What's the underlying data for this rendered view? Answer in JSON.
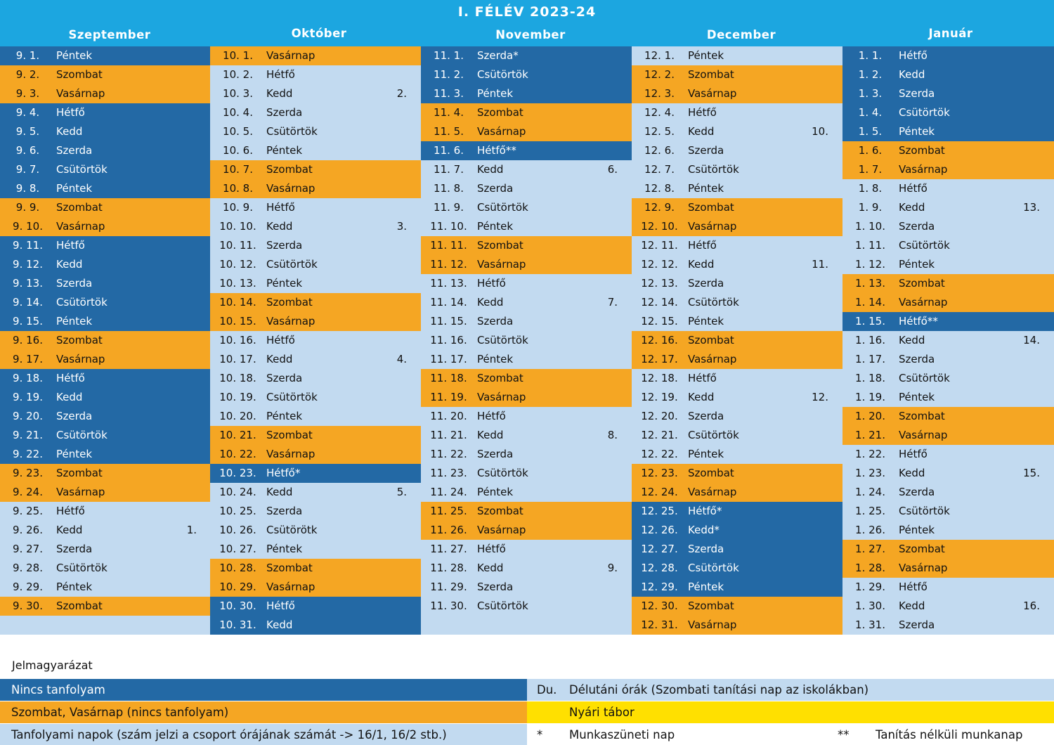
{
  "title": "I. FÉLÉV 2023-24",
  "months": [
    "Szeptember",
    "Október",
    "November",
    "December",
    "Január"
  ],
  "colors": {
    "header": "#1ca6e0",
    "no_course": "#2369a5",
    "weekend": "#f5a623",
    "course_day": "#c2daf0",
    "summer_camp": "#ffe000"
  },
  "columns": [
    {
      "month": "Szeptember",
      "days": [
        {
          "date": "9. 1.",
          "name": "Péntek",
          "type": "dark"
        },
        {
          "date": "9. 2.",
          "name": "Szombat",
          "type": "orange"
        },
        {
          "date": "9. 3.",
          "name": "Vasárnap",
          "type": "orange"
        },
        {
          "date": "9. 4.",
          "name": "Hétfő",
          "type": "dark"
        },
        {
          "date": "9. 5.",
          "name": "Kedd",
          "type": "dark"
        },
        {
          "date": "9. 6.",
          "name": "Szerda",
          "type": "dark"
        },
        {
          "date": "9. 7.",
          "name": "Csütörtök",
          "type": "dark"
        },
        {
          "date": "9. 8.",
          "name": "Péntek",
          "type": "dark"
        },
        {
          "date": "9. 9.",
          "name": "Szombat",
          "type": "orange"
        },
        {
          "date": "9. 10.",
          "name": "Vasárnap",
          "type": "orange"
        },
        {
          "date": "9. 11.",
          "name": "Hétfő",
          "type": "dark"
        },
        {
          "date": "9. 12.",
          "name": "Kedd",
          "type": "dark"
        },
        {
          "date": "9. 13.",
          "name": "Szerda",
          "type": "dark"
        },
        {
          "date": "9. 14.",
          "name": "Csütörtök",
          "type": "dark"
        },
        {
          "date": "9. 15.",
          "name": "Péntek",
          "type": "dark"
        },
        {
          "date": "9. 16.",
          "name": "Szombat",
          "type": "orange"
        },
        {
          "date": "9. 17.",
          "name": "Vasárnap",
          "type": "orange"
        },
        {
          "date": "9. 18.",
          "name": "Hétfő",
          "type": "dark"
        },
        {
          "date": "9. 19.",
          "name": "Kedd",
          "type": "dark"
        },
        {
          "date": "9. 20.",
          "name": "Szerda",
          "type": "dark"
        },
        {
          "date": "9. 21.",
          "name": "Csütörtök",
          "type": "dark"
        },
        {
          "date": "9. 22.",
          "name": "Péntek",
          "type": "dark"
        },
        {
          "date": "9. 23.",
          "name": "Szombat",
          "type": "orange"
        },
        {
          "date": "9. 24.",
          "name": "Vasárnap",
          "type": "orange"
        },
        {
          "date": "9. 25.",
          "name": "Hétfő",
          "type": "light"
        },
        {
          "date": "9. 26.",
          "name": "Kedd",
          "type": "light",
          "group": "1."
        },
        {
          "date": "9. 27.",
          "name": "Szerda",
          "type": "light"
        },
        {
          "date": "9. 28.",
          "name": "Csütörtök",
          "type": "light"
        },
        {
          "date": "9. 29.",
          "name": "Péntek",
          "type": "light"
        },
        {
          "date": "9. 30.",
          "name": "Szombat",
          "type": "orange"
        },
        {
          "date": "",
          "name": "",
          "type": "empty"
        }
      ]
    },
    {
      "month": "Október",
      "days": [
        {
          "date": "10. 1.",
          "name": "Vasárnap",
          "type": "orange"
        },
        {
          "date": "10. 2.",
          "name": "Hétfő",
          "type": "light"
        },
        {
          "date": "10. 3.",
          "name": "Kedd",
          "type": "light",
          "group": "2."
        },
        {
          "date": "10. 4.",
          "name": "Szerda",
          "type": "light"
        },
        {
          "date": "10. 5.",
          "name": "Csütörtök",
          "type": "light"
        },
        {
          "date": "10. 6.",
          "name": "Péntek",
          "type": "light"
        },
        {
          "date": "10. 7.",
          "name": "Szombat",
          "type": "orange"
        },
        {
          "date": "10. 8.",
          "name": "Vasárnap",
          "type": "orange"
        },
        {
          "date": "10. 9.",
          "name": "Hétfő",
          "type": "light"
        },
        {
          "date": "10. 10.",
          "name": "Kedd",
          "type": "light",
          "group": "3."
        },
        {
          "date": "10. 11.",
          "name": "Szerda",
          "type": "light"
        },
        {
          "date": "10. 12.",
          "name": "Csütörtök",
          "type": "light"
        },
        {
          "date": "10. 13.",
          "name": "Péntek",
          "type": "light"
        },
        {
          "date": "10. 14.",
          "name": "Szombat",
          "type": "orange"
        },
        {
          "date": "10. 15.",
          "name": "Vasárnap",
          "type": "orange"
        },
        {
          "date": "10. 16.",
          "name": "Hétfő",
          "type": "light"
        },
        {
          "date": "10. 17.",
          "name": "Kedd",
          "type": "light",
          "group": "4."
        },
        {
          "date": "10. 18.",
          "name": "Szerda",
          "type": "light"
        },
        {
          "date": "10. 19.",
          "name": "Csütörtök",
          "type": "light"
        },
        {
          "date": "10. 20.",
          "name": "Péntek",
          "type": "light"
        },
        {
          "date": "10. 21.",
          "name": "Szombat",
          "type": "orange"
        },
        {
          "date": "10. 22.",
          "name": "Vasárnap",
          "type": "orange"
        },
        {
          "date": "10. 23.",
          "name": "Hétfő*",
          "type": "dark"
        },
        {
          "date": "10. 24.",
          "name": "Kedd",
          "type": "light",
          "group": "5."
        },
        {
          "date": "10. 25.",
          "name": "Szerda",
          "type": "light"
        },
        {
          "date": "10. 26.",
          "name": "Csütörötk",
          "type": "light"
        },
        {
          "date": "10. 27.",
          "name": "Péntek",
          "type": "light"
        },
        {
          "date": "10. 28.",
          "name": "Szombat",
          "type": "orange"
        },
        {
          "date": "10. 29.",
          "name": "Vasárnap",
          "type": "orange"
        },
        {
          "date": "10. 30.",
          "name": "Hétfő",
          "type": "dark"
        },
        {
          "date": "10. 31.",
          "name": "Kedd",
          "type": "dark"
        }
      ]
    },
    {
      "month": "November",
      "days": [
        {
          "date": "11. 1.",
          "name": "Szerda*",
          "type": "dark"
        },
        {
          "date": "11. 2.",
          "name": "Csütörtök",
          "type": "dark"
        },
        {
          "date": "11. 3.",
          "name": "Péntek",
          "type": "dark"
        },
        {
          "date": "11. 4.",
          "name": "Szombat",
          "type": "orange"
        },
        {
          "date": "11. 5.",
          "name": "Vasárnap",
          "type": "orange"
        },
        {
          "date": "11. 6.",
          "name": "Hétfő**",
          "type": "dark"
        },
        {
          "date": "11. 7.",
          "name": "Kedd",
          "type": "light",
          "group": "6."
        },
        {
          "date": "11. 8.",
          "name": "Szerda",
          "type": "light"
        },
        {
          "date": "11. 9.",
          "name": "Csütörtök",
          "type": "light"
        },
        {
          "date": "11. 10.",
          "name": "Péntek",
          "type": "light"
        },
        {
          "date": "11. 11.",
          "name": "Szombat",
          "type": "orange"
        },
        {
          "date": "11. 12.",
          "name": "Vasárnap",
          "type": "orange"
        },
        {
          "date": "11. 13.",
          "name": "Hétfő",
          "type": "light"
        },
        {
          "date": "11. 14.",
          "name": "Kedd",
          "type": "light",
          "group": "7."
        },
        {
          "date": "11. 15.",
          "name": "Szerda",
          "type": "light"
        },
        {
          "date": "11. 16.",
          "name": "Csütörtök",
          "type": "light"
        },
        {
          "date": "11. 17.",
          "name": "Péntek",
          "type": "light"
        },
        {
          "date": "11. 18.",
          "name": "Szombat",
          "type": "orange"
        },
        {
          "date": "11. 19.",
          "name": "Vasárnap",
          "type": "orange"
        },
        {
          "date": "11. 20.",
          "name": "Hétfő",
          "type": "light"
        },
        {
          "date": "11. 21.",
          "name": "Kedd",
          "type": "light",
          "group": "8."
        },
        {
          "date": "11. 22.",
          "name": "Szerda",
          "type": "light"
        },
        {
          "date": "11. 23.",
          "name": "Csütörtök",
          "type": "light"
        },
        {
          "date": "11. 24.",
          "name": "Péntek",
          "type": "light"
        },
        {
          "date": "11. 25.",
          "name": "Szombat",
          "type": "orange"
        },
        {
          "date": "11. 26.",
          "name": "Vasárnap",
          "type": "orange"
        },
        {
          "date": "11. 27.",
          "name": "Hétfő",
          "type": "light"
        },
        {
          "date": "11. 28.",
          "name": "Kedd",
          "type": "light",
          "group": "9."
        },
        {
          "date": "11. 29.",
          "name": "Szerda",
          "type": "light"
        },
        {
          "date": "11. 30.",
          "name": "Csütörtök",
          "type": "light"
        },
        {
          "date": "",
          "name": "",
          "type": "empty"
        }
      ]
    },
    {
      "month": "December",
      "days": [
        {
          "date": "12. 1.",
          "name": "Péntek",
          "type": "light"
        },
        {
          "date": "12. 2.",
          "name": "Szombat",
          "type": "orange"
        },
        {
          "date": "12. 3.",
          "name": "Vasárnap",
          "type": "orange"
        },
        {
          "date": "12. 4.",
          "name": "Hétfő",
          "type": "light"
        },
        {
          "date": "12. 5.",
          "name": "Kedd",
          "type": "light",
          "group": "10."
        },
        {
          "date": "12. 6.",
          "name": "Szerda",
          "type": "light"
        },
        {
          "date": "12. 7.",
          "name": "Csütörtök",
          "type": "light"
        },
        {
          "date": "12. 8.",
          "name": "Péntek",
          "type": "light"
        },
        {
          "date": "12. 9.",
          "name": "Szombat",
          "type": "orange"
        },
        {
          "date": "12. 10.",
          "name": "Vasárnap",
          "type": "orange"
        },
        {
          "date": "12. 11.",
          "name": "Hétfő",
          "type": "light"
        },
        {
          "date": "12. 12.",
          "name": "Kedd",
          "type": "light",
          "group": "11."
        },
        {
          "date": "12. 13.",
          "name": "Szerda",
          "type": "light"
        },
        {
          "date": "12. 14.",
          "name": "Csütörtök",
          "type": "light"
        },
        {
          "date": "12. 15.",
          "name": "Péntek",
          "type": "light"
        },
        {
          "date": "12. 16.",
          "name": "Szombat",
          "type": "orange"
        },
        {
          "date": "12. 17.",
          "name": "Vasárnap",
          "type": "orange"
        },
        {
          "date": "12. 18.",
          "name": "Hétfő",
          "type": "light"
        },
        {
          "date": "12. 19.",
          "name": "Kedd",
          "type": "light",
          "group": "12."
        },
        {
          "date": "12. 20.",
          "name": "Szerda",
          "type": "light"
        },
        {
          "date": "12. 21.",
          "name": "Csütörtök",
          "type": "light"
        },
        {
          "date": "12. 22.",
          "name": "Péntek",
          "type": "light"
        },
        {
          "date": "12. 23.",
          "name": "Szombat",
          "type": "orange"
        },
        {
          "date": "12. 24.",
          "name": "Vasárnap",
          "type": "orange"
        },
        {
          "date": "12. 25.",
          "name": "Hétfő*",
          "type": "dark"
        },
        {
          "date": "12. 26.",
          "name": "Kedd*",
          "type": "dark"
        },
        {
          "date": "12. 27.",
          "name": "Szerda",
          "type": "dark"
        },
        {
          "date": "12. 28.",
          "name": "Csütörtök",
          "type": "dark"
        },
        {
          "date": "12. 29.",
          "name": "Péntek",
          "type": "dark"
        },
        {
          "date": "12. 30.",
          "name": "Szombat",
          "type": "orange"
        },
        {
          "date": "12. 31.",
          "name": "Vasárnap",
          "type": "orange"
        }
      ]
    },
    {
      "month": "Január",
      "days": [
        {
          "date": "1. 1.",
          "name": "Hétfő",
          "type": "dark"
        },
        {
          "date": "1. 2.",
          "name": "Kedd",
          "type": "dark"
        },
        {
          "date": "1. 3.",
          "name": "Szerda",
          "type": "dark"
        },
        {
          "date": "1. 4.",
          "name": "Csütörtök",
          "type": "dark"
        },
        {
          "date": "1. 5.",
          "name": "Péntek",
          "type": "dark"
        },
        {
          "date": "1. 6.",
          "name": "Szombat",
          "type": "orange"
        },
        {
          "date": "1. 7.",
          "name": "Vasárnap",
          "type": "orange"
        },
        {
          "date": "1. 8.",
          "name": "Hétfő",
          "type": "light"
        },
        {
          "date": "1. 9.",
          "name": "Kedd",
          "type": "light",
          "group": "13."
        },
        {
          "date": "1. 10.",
          "name": "Szerda",
          "type": "light"
        },
        {
          "date": "1. 11.",
          "name": "Csütörtök",
          "type": "light"
        },
        {
          "date": "1. 12.",
          "name": "Péntek",
          "type": "light"
        },
        {
          "date": "1. 13.",
          "name": "Szombat",
          "type": "orange"
        },
        {
          "date": "1. 14.",
          "name": "Vasárnap",
          "type": "orange"
        },
        {
          "date": "1. 15.",
          "name": "Hétfő**",
          "type": "dark"
        },
        {
          "date": "1. 16.",
          "name": "Kedd",
          "type": "light",
          "group": "14."
        },
        {
          "date": "1. 17.",
          "name": "Szerda",
          "type": "light"
        },
        {
          "date": "1. 18.",
          "name": "Csütörtök",
          "type": "light"
        },
        {
          "date": "1. 19.",
          "name": "Péntek",
          "type": "light"
        },
        {
          "date": "1. 20.",
          "name": "Szombat",
          "type": "orange"
        },
        {
          "date": "1. 21.",
          "name": "Vasárnap",
          "type": "orange"
        },
        {
          "date": "1. 22.",
          "name": "Hétfő",
          "type": "light"
        },
        {
          "date": "1. 23.",
          "name": "Kedd",
          "type": "light",
          "group": "15."
        },
        {
          "date": "1. 24.",
          "name": "Szerda",
          "type": "light"
        },
        {
          "date": "1. 25.",
          "name": "Csütörtök",
          "type": "light"
        },
        {
          "date": "1. 26.",
          "name": "Péntek",
          "type": "light"
        },
        {
          "date": "1. 27.",
          "name": "Szombat",
          "type": "orange"
        },
        {
          "date": "1. 28.",
          "name": "Vasárnap",
          "type": "orange"
        },
        {
          "date": "1. 29.",
          "name": "Hétfő",
          "type": "light"
        },
        {
          "date": "1. 30.",
          "name": "Kedd",
          "type": "light",
          "group": "16."
        },
        {
          "date": "1. 31.",
          "name": "Szerda",
          "type": "light"
        }
      ]
    }
  ],
  "legend": {
    "title": "Jelmagyarázat",
    "no_course": "Nincs tanfolyam",
    "weekend": "Szombat, Vasárnap (nincs tanfolyam)",
    "course_days": "Tanfolyami napok (szám jelzi a csoport órájának számát -> 16/1, 16/2 stb.)",
    "afternoon_abbr": "Du.",
    "afternoon": "Délutáni órák (Szombati tanítási nap az iskolákban)",
    "summer_camp": "Nyári tábor",
    "holiday_symbol": "*",
    "holiday": "Munkaszüneti nap",
    "workday_symbol": "**",
    "workday": "Tanítás nélküli munkanap"
  }
}
